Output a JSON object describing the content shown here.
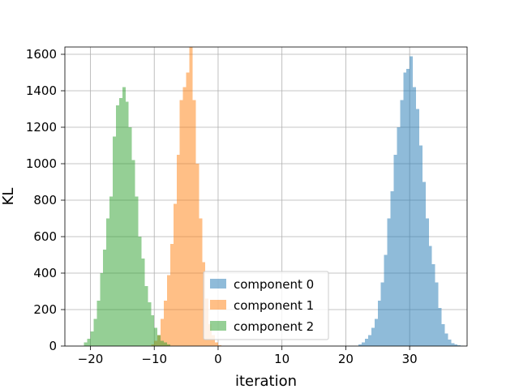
{
  "chart_data": {
    "type": "bar",
    "subtype": "histogram",
    "xlabel": "iteration",
    "ylabel": "KL",
    "xlim": [
      -24,
      39
    ],
    "ylim": [
      0,
      1640
    ],
    "xticks": [
      -20,
      -10,
      0,
      10,
      20,
      30
    ],
    "yticks": [
      0,
      200,
      400,
      600,
      800,
      1000,
      1200,
      1400,
      1600
    ],
    "grid": true,
    "alpha": 0.5,
    "bin_width": 0.5,
    "legend": {
      "placement": "lower-center"
    },
    "series": [
      {
        "name": "component 0",
        "color": "#1f77b4",
        "x_start": 22,
        "counts": [
          10,
          20,
          40,
          60,
          100,
          150,
          250,
          350,
          500,
          700,
          850,
          1050,
          1200,
          1350,
          1500,
          1520,
          1590,
          1420,
          1300,
          1100,
          900,
          700,
          550,
          450,
          350,
          210,
          120,
          70,
          35,
          15,
          8,
          5,
          2
        ]
      },
      {
        "name": "component 1",
        "color": "#ff7f0e",
        "x_start": -10.5,
        "counts": [
          10,
          30,
          60,
          150,
          250,
          390,
          560,
          780,
          1050,
          1350,
          1420,
          1500,
          1640,
          1350,
          1000,
          700,
          460,
          260,
          120,
          60,
          20,
          5
        ]
      },
      {
        "name": "component 2",
        "color": "#2ca02c",
        "x_start": -21,
        "counts": [
          20,
          40,
          80,
          150,
          250,
          400,
          530,
          700,
          820,
          1150,
          1320,
          1360,
          1420,
          1340,
          1200,
          1020,
          820,
          600,
          480,
          330,
          240,
          170,
          100,
          60,
          30,
          20,
          10
        ]
      }
    ]
  }
}
